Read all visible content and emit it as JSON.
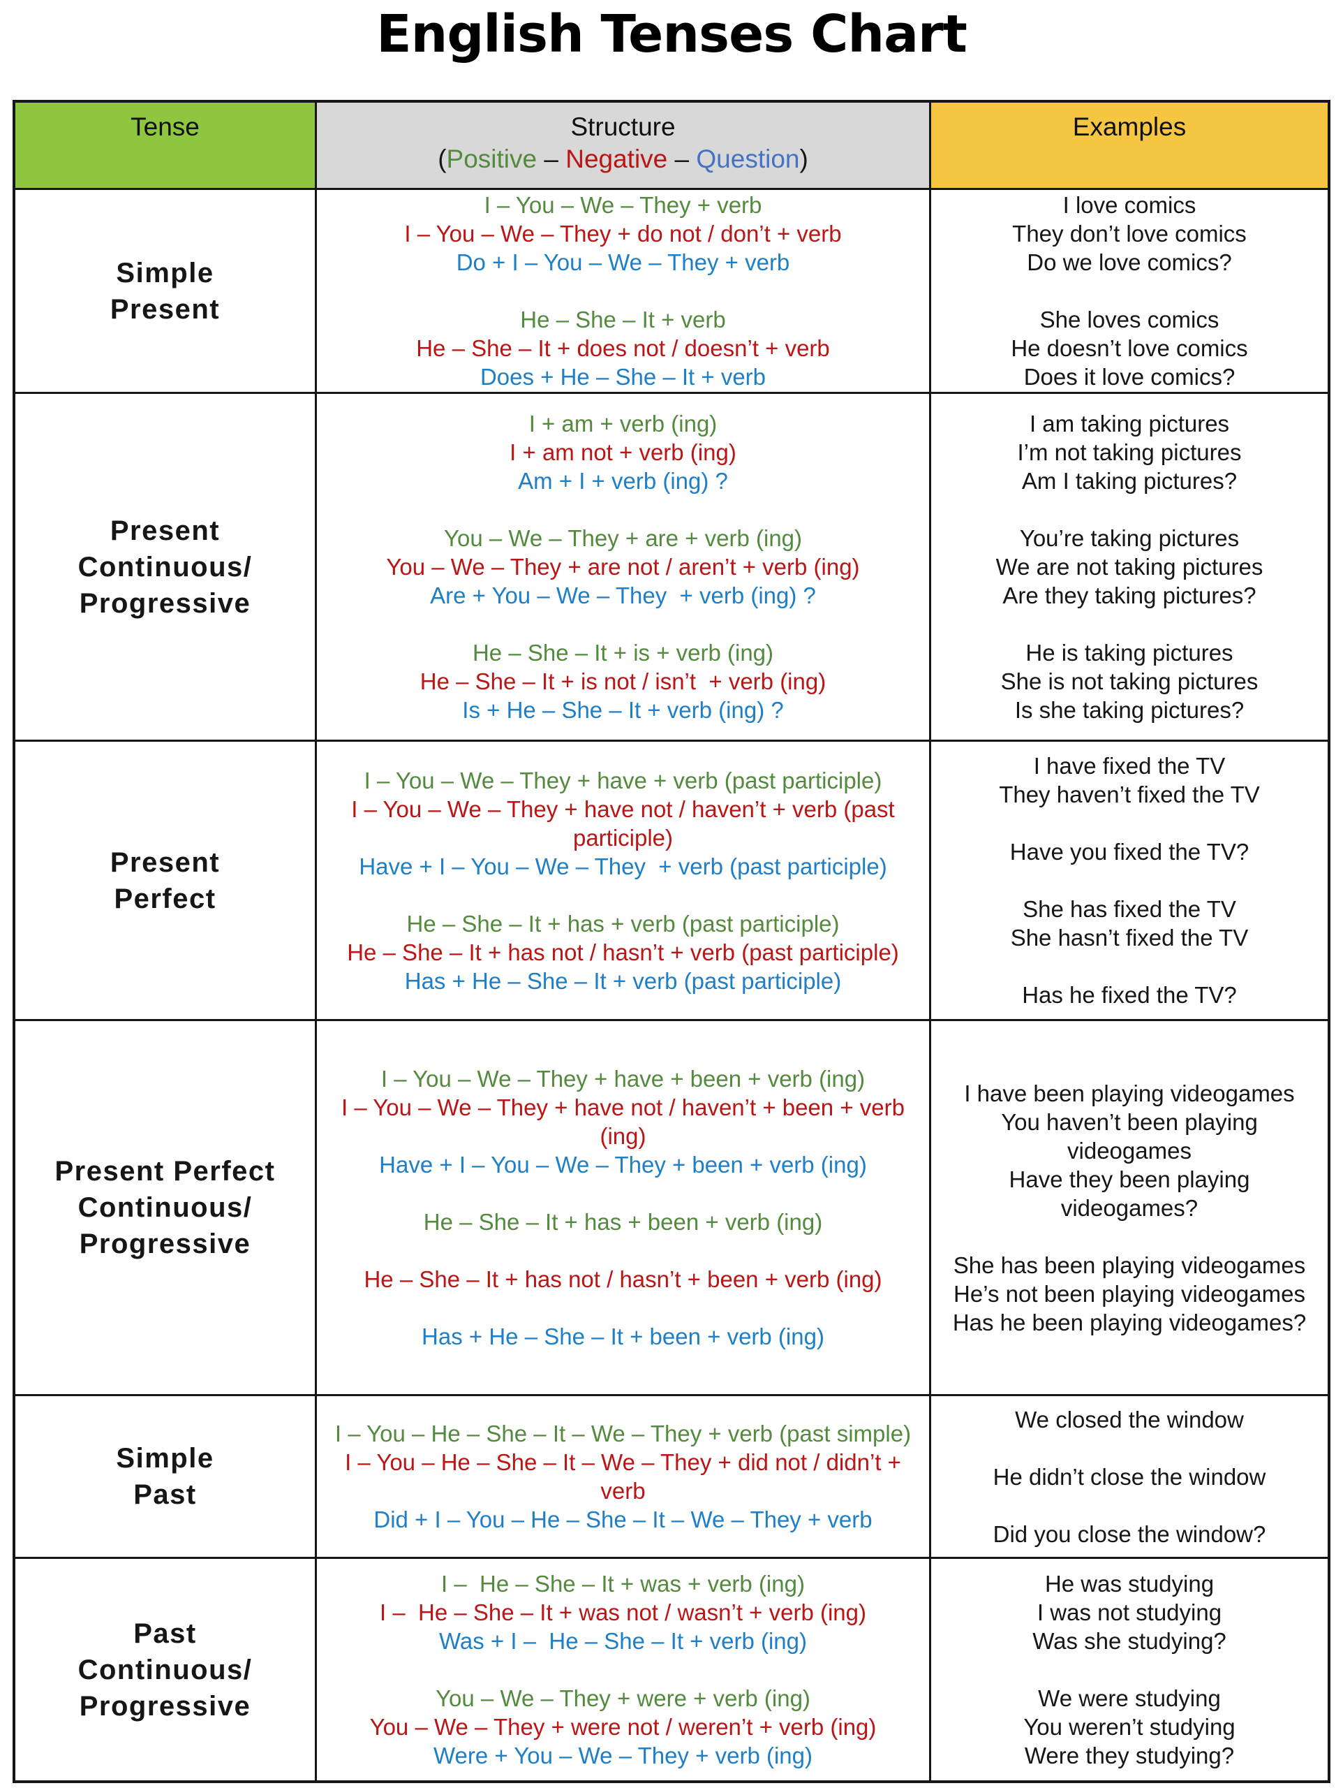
{
  "title": "English Tenses Chart",
  "colors": {
    "positive": "#538a3e",
    "negative": "#bb1515",
    "question": "#1e7fc6",
    "header_question": "#4472c4",
    "tense_header_bg": "#8fc63f",
    "structure_header_bg": "#d8d8d8",
    "examples_header_bg": "#f6c643"
  },
  "header": {
    "tense": "Tense",
    "structure": "Structure",
    "structure_sub": {
      "prefix": "(",
      "positive": "Positive",
      "dash1": " – ",
      "negative": "Negative",
      "dash2": " – ",
      "question": "Question",
      "suffix": ")"
    },
    "examples": "Examples"
  },
  "rows": [
    {
      "tense_lines": [
        "Simple",
        "Present"
      ],
      "structure": [
        {
          "type": "positive",
          "text": "I – You – We – They + verb"
        },
        {
          "type": "negative",
          "text": "I – You – We – They + do not / don’t + verb"
        },
        {
          "type": "question",
          "text": "Do + I – You – We – They + verb"
        },
        {
          "type": "gap"
        },
        {
          "type": "positive",
          "text": "He – She – It + verb"
        },
        {
          "type": "negative",
          "text": "He – She – It + does not / doesn’t + verb"
        },
        {
          "type": "question",
          "text": "Does + He – She – It + verb"
        }
      ],
      "examples": [
        "I love comics",
        "They don’t love comics",
        "Do we love comics?",
        "",
        "She loves comics",
        "He doesn’t love comics",
        "Does it love comics?"
      ]
    },
    {
      "tense_lines": [
        "Present",
        "Continuous/",
        "Progressive"
      ],
      "structure": [
        {
          "type": "positive",
          "text": "I + am + verb (ing)"
        },
        {
          "type": "negative",
          "text": "I + am not + verb (ing)"
        },
        {
          "type": "question",
          "text": "Am + I + verb (ing) ?"
        },
        {
          "type": "gap"
        },
        {
          "type": "positive",
          "text": "You – We – They + are + verb (ing)"
        },
        {
          "type": "negative",
          "text": "You – We – They + are not / aren’t + verb (ing)"
        },
        {
          "type": "question",
          "text": "Are + You – We – They  + verb (ing) ?"
        },
        {
          "type": "gap"
        },
        {
          "type": "positive",
          "text": "He – She – It + is + verb (ing)"
        },
        {
          "type": "negative",
          "text": "He – She – It + is not / isn’t  + verb (ing)"
        },
        {
          "type": "question",
          "text": "Is + He – She – It + verb (ing) ?"
        }
      ],
      "examples": [
        "I am taking pictures",
        "I’m not taking pictures",
        "Am I taking pictures?",
        "",
        "You’re taking pictures",
        "We are not taking pictures",
        "Are they taking pictures?",
        "",
        "He is taking pictures",
        "She is not taking pictures",
        "Is she taking pictures?"
      ]
    },
    {
      "tense_lines": [
        "Present",
        "Perfect"
      ],
      "structure": [
        {
          "type": "positive",
          "text": "I – You – We – They + have + verb (past participle)"
        },
        {
          "type": "negative",
          "text": "I – You – We – They + have not / haven’t + verb (past participle)"
        },
        {
          "type": "question",
          "text": "Have + I – You – We – They  + verb (past participle)"
        },
        {
          "type": "gap"
        },
        {
          "type": "positive",
          "text": "He – She – It + has + verb (past participle)"
        },
        {
          "type": "negative",
          "text": "He – She – It + has not / hasn’t + verb (past participle)"
        },
        {
          "type": "question",
          "text": "Has + He – She – It + verb (past participle)"
        }
      ],
      "examples": [
        "I have fixed the TV",
        "They haven’t fixed the TV",
        "",
        "Have you fixed the TV?",
        "",
        "She has fixed the TV",
        "She hasn’t fixed the TV",
        "",
        "Has he fixed the TV?"
      ]
    },
    {
      "tense_lines": [
        "Present Perfect",
        "Continuous/",
        "Progressive"
      ],
      "structure": [
        {
          "type": "positive",
          "text": "I – You – We – They + have + been + verb (ing)"
        },
        {
          "type": "negative",
          "text": "I – You – We – They + have not / haven’t + been + verb (ing)"
        },
        {
          "type": "question",
          "text": "Have + I – You – We – They + been + verb (ing)"
        },
        {
          "type": "gap"
        },
        {
          "type": "positive",
          "text": "He – She – It + has + been + verb (ing)"
        },
        {
          "type": "gap"
        },
        {
          "type": "negative",
          "text": "He – She – It + has not / hasn’t + been + verb (ing)"
        },
        {
          "type": "gap"
        },
        {
          "type": "question",
          "text": "Has + He – She – It + been + verb (ing)"
        }
      ],
      "examples": [
        "I have been playing videogames",
        "You haven’t been playing videogames",
        "Have they been playing videogames?",
        "",
        "She has been playing videogames",
        "He’s not been playing videogames",
        "Has he been playing videogames?"
      ]
    },
    {
      "tense_lines": [
        "Simple",
        "Past"
      ],
      "structure": [
        {
          "type": "positive",
          "text": "I – You – He – She – It – We – They + verb (past simple)"
        },
        {
          "type": "negative",
          "text": "I – You – He – She – It – We – They + did not / didn’t + verb"
        },
        {
          "type": "question",
          "text": "Did + I – You – He – She – It – We – They + verb"
        }
      ],
      "examples": [
        "We closed the window",
        "",
        "He didn’t close the window",
        "",
        "Did you close the window?"
      ]
    },
    {
      "tense_lines": [
        "Past",
        "Continuous/",
        "Progressive"
      ],
      "structure": [
        {
          "type": "positive",
          "text": "I –  He – She – It + was + verb (ing)"
        },
        {
          "type": "negative",
          "text": "I –  He – She – It + was not / wasn’t + verb (ing)"
        },
        {
          "type": "question",
          "text": "Was + I –  He – She – It + verb (ing)"
        },
        {
          "type": "gap"
        },
        {
          "type": "positive",
          "text": "You – We – They + were + verb (ing)"
        },
        {
          "type": "negative",
          "text": "You – We – They + were not / weren’t + verb (ing)"
        },
        {
          "type": "question",
          "text": "Were + You – We – They + verb (ing)"
        }
      ],
      "examples": [
        "He was studying",
        "I was not studying",
        "Was she studying?",
        "",
        "We were studying",
        "You weren’t studying",
        "Were they studying?"
      ]
    }
  ]
}
